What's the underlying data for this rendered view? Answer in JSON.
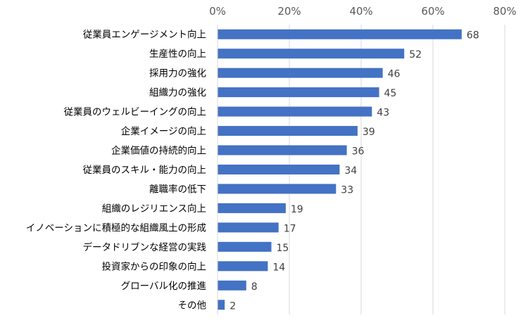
{
  "chart_data": {
    "type": "bar",
    "orientation": "horizontal",
    "title": "",
    "xlabel": "",
    "ylabel": "",
    "xlim": [
      0,
      80
    ],
    "ticks": [
      0,
      20,
      40,
      60,
      80
    ],
    "tick_labels": [
      "0%",
      "20%",
      "40%",
      "60%",
      "80%"
    ],
    "axis_position": "top",
    "grid": true,
    "bar_color": "#4472C4",
    "categories": [
      "従業員エンゲージメント向上",
      "生産性の向上",
      "採用力の強化",
      "組織力の強化",
      "従業員のウェルビーイングの向上",
      "企業イメージの向上",
      "企業価値の持続的向上",
      "従業員のスキル・能力の向上",
      "離職率の低下",
      "組織のレジリエンス向上",
      "イノベーションに積極的な組織風土の形成",
      "データドリブンな経営の実践",
      "投資家からの印象の向上",
      "グローバル化の推進",
      "その他"
    ],
    "values": [
      68,
      52,
      46,
      45,
      43,
      39,
      36,
      34,
      33,
      19,
      17,
      15,
      14,
      8,
      2
    ]
  }
}
